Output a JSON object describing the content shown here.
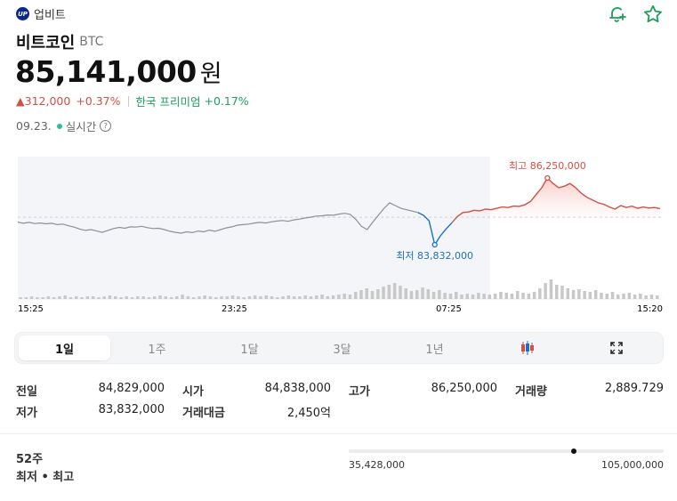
{
  "header": {
    "exchange_logo_text": "UP",
    "exchange_name": "업비트",
    "coin_name": "비트코인",
    "ticker": "BTC",
    "price": "85,141,000",
    "currency": "원",
    "change_amount": "▲312,000",
    "change_percent": "+0.37%",
    "premium_label": "한국 프리미엄",
    "premium_value": "+0.17%",
    "date": "09.23.",
    "live_label": "실시간",
    "help_glyph": "?"
  },
  "icons": {
    "alert": "bell-plus-icon",
    "favorite": "star-icon"
  },
  "colors": {
    "up": "#d24f45",
    "down": "#1c6fc4",
    "green": "#1e9e5a",
    "line": "#8a9099"
  },
  "chart_data": {
    "type": "line",
    "x_ticks": [
      "15:25",
      "23:25",
      "07:25",
      "15:20"
    ],
    "high_label": "최고 86,250,000",
    "low_label": "최저 83,832,000",
    "high": 86250000,
    "low": 83832000,
    "reference_value": 84829000,
    "series": [
      {
        "values": [
          84650000,
          84610000,
          84640000,
          84600000,
          84620000,
          84590000,
          84610000,
          84560000,
          84580000,
          84520000,
          84470000,
          84400000,
          84350000,
          84380000,
          84330000,
          84280000,
          84350000,
          84420000,
          84460000,
          84430000,
          84480000,
          84470000,
          84500000,
          84450000,
          84420000,
          84430000,
          84380000,
          84320000,
          84280000,
          84250000,
          84300000,
          84270000,
          84330000,
          84300000,
          84360000,
          84320000,
          84380000,
          84440000,
          84480000,
          84540000,
          84560000,
          84580000,
          84620000,
          84640000,
          84620000,
          84660000,
          84690000,
          84710000,
          84680000,
          84730000,
          84760000,
          84800000,
          84830000,
          84870000,
          84880000,
          84910000,
          84900000,
          84940000,
          84970000,
          84930000,
          84750000,
          84500000,
          84380000,
          84650000,
          84900000,
          85150000,
          85350000,
          85250000,
          85150000,
          85100000,
          85050000,
          85000000,
          84900000,
          84700000,
          83832000,
          84150000,
          84400000,
          84620000,
          84850000,
          85000000,
          85020000,
          85080000,
          85060000,
          85120000,
          85100000,
          85150000,
          85200000,
          85180000,
          85230000,
          85220000,
          85280000,
          85400000,
          85650000,
          85900000,
          86250000,
          86050000,
          85900000,
          85950000,
          86050000,
          85900000,
          85700000,
          85550000,
          85450000,
          85350000,
          85300000,
          85200000,
          85120000,
          85250000,
          85180000,
          85230000,
          85150000,
          85200000,
          85160000,
          85180000,
          85141000
        ]
      }
    ],
    "volume": [
      2,
      2,
      3,
      2,
      2,
      3,
      2,
      3,
      4,
      2,
      3,
      2,
      3,
      3,
      2,
      3,
      4,
      3,
      2,
      3,
      2,
      3,
      3,
      2,
      3,
      4,
      3,
      2,
      3,
      5,
      3,
      2,
      3,
      4,
      3,
      2,
      3,
      3,
      4,
      3,
      2,
      3,
      4,
      3,
      4,
      3,
      2,
      3,
      4,
      3,
      3,
      4,
      3,
      4,
      5,
      3,
      4,
      5,
      6,
      5,
      8,
      10,
      12,
      9,
      11,
      14,
      16,
      18,
      15,
      12,
      9,
      10,
      13,
      11,
      8,
      10,
      7,
      6,
      8,
      5,
      6,
      5,
      7,
      6,
      5,
      6,
      8,
      7,
      6,
      9,
      7,
      6,
      8,
      12,
      18,
      22,
      16,
      15,
      12,
      10,
      11,
      9,
      8,
      10,
      7,
      6,
      8,
      5,
      6,
      7,
      5,
      6,
      4,
      5,
      4
    ]
  },
  "tabs": [
    {
      "label": "1일",
      "active": true
    },
    {
      "label": "1주"
    },
    {
      "label": "1달"
    },
    {
      "label": "3달"
    },
    {
      "label": "1년"
    }
  ],
  "tab_icons": {
    "candle": "candlestick-icon",
    "expand": "expand-icon"
  },
  "stats": {
    "prev_close_label": "전일",
    "prev_close_value": "84,829,000",
    "open_label": "시가",
    "open_value": "84,838,000",
    "high_label": "고가",
    "high_value": "86,250,000",
    "volume_label": "거래량",
    "volume_value": "2,889.729",
    "low_label": "저가",
    "low_value": "83,832,000",
    "turnover_label": "거래대금",
    "turnover_value": "2,450억"
  },
  "week52": {
    "label_line1": "52주",
    "label_line2": "최저 • 최고",
    "low": "35,428,000",
    "high": "105,000,000",
    "low_value": 35428000,
    "high_value": 105000000,
    "current_value": 85141000
  }
}
